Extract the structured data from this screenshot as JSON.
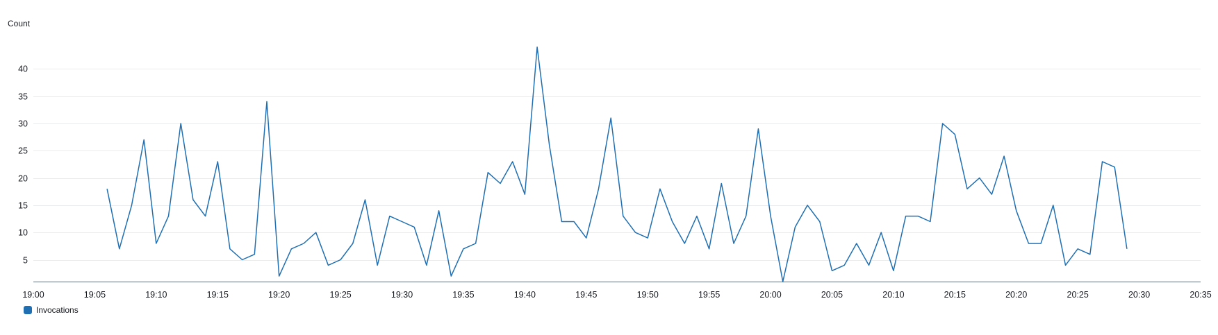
{
  "chart_data": {
    "type": "line",
    "ylabel": "Count",
    "yticks": [
      5,
      10,
      15,
      20,
      25,
      30,
      35,
      40
    ],
    "ylim": [
      1,
      45
    ],
    "xlim": [
      "19:00",
      "20:35"
    ],
    "xticks": [
      "19:00",
      "19:05",
      "19:10",
      "19:15",
      "19:20",
      "19:25",
      "19:30",
      "19:35",
      "19:40",
      "19:45",
      "19:50",
      "19:55",
      "20:00",
      "20:05",
      "20:10",
      "20:15",
      "20:20",
      "20:25",
      "20:30",
      "20:35"
    ],
    "grid": true,
    "legend_position": "bottom-left",
    "series": [
      {
        "name": "Invocations",
        "color": "#1f6fb2",
        "x": [
          "19:06",
          "19:07",
          "19:08",
          "19:09",
          "19:10",
          "19:11",
          "19:12",
          "19:13",
          "19:14",
          "19:15",
          "19:16",
          "19:17",
          "19:18",
          "19:19",
          "19:20",
          "19:21",
          "19:22",
          "19:23",
          "19:24",
          "19:25",
          "19:26",
          "19:27",
          "19:28",
          "19:29",
          "19:30",
          "19:31",
          "19:32",
          "19:33",
          "19:34",
          "19:35",
          "19:36",
          "19:37",
          "19:38",
          "19:39",
          "19:40",
          "19:41",
          "19:42",
          "19:43",
          "19:44",
          "19:45",
          "19:46",
          "19:47",
          "19:48",
          "19:49",
          "19:50",
          "19:51",
          "19:52",
          "19:53",
          "19:54",
          "19:55",
          "19:56",
          "19:57",
          "19:58",
          "19:59",
          "20:00",
          "20:01",
          "20:02",
          "20:03",
          "20:04",
          "20:05",
          "20:06",
          "20:07",
          "20:08",
          "20:09",
          "20:10",
          "20:11",
          "20:12",
          "20:13",
          "20:14",
          "20:15",
          "20:16",
          "20:17",
          "20:18",
          "20:19",
          "20:20",
          "20:21",
          "20:22",
          "20:23",
          "20:24",
          "20:25",
          "20:26",
          "20:27",
          "20:28",
          "20:29"
        ],
        "values": [
          18,
          7,
          15,
          27,
          8,
          13,
          30,
          16,
          13,
          23,
          7,
          5,
          6,
          34,
          2,
          7,
          8,
          10,
          4,
          5,
          8,
          16,
          4,
          13,
          12,
          11,
          4,
          14,
          2,
          7,
          8,
          21,
          19,
          23,
          17,
          44,
          26,
          12,
          12,
          9,
          18,
          31,
          13,
          10,
          9,
          18,
          12,
          8,
          13,
          7,
          19,
          8,
          13,
          29,
          13,
          1,
          11,
          15,
          12,
          3,
          4,
          8,
          4,
          10,
          3,
          13,
          13,
          12,
          30,
          28,
          18,
          20,
          17,
          24,
          14,
          8,
          8,
          15,
          4,
          7,
          6,
          23,
          22,
          7
        ]
      }
    ]
  }
}
